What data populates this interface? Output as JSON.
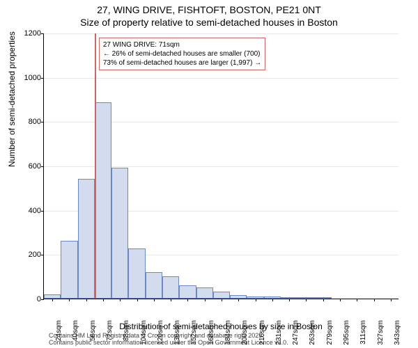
{
  "title_line1": "27, WING DRIVE, FISHTOFT, BOSTON, PE21 0NT",
  "title_line2": "Size of property relative to semi-detached houses in Boston",
  "chart": {
    "type": "histogram",
    "ylim": [
      0,
      1200
    ],
    "ytick_step": 200,
    "x_labels": [
      "24sqm",
      "40sqm",
      "56sqm",
      "72sqm",
      "88sqm",
      "104sqm",
      "120sqm",
      "136sqm",
      "152sqm",
      "168sqm",
      "184sqm",
      "200sqm",
      "216sqm",
      "231sqm",
      "247sqm",
      "263sqm",
      "279sqm",
      "295sqm",
      "311sqm",
      "327sqm",
      "343sqm"
    ],
    "values": [
      20,
      260,
      540,
      885,
      590,
      225,
      120,
      100,
      60,
      50,
      30,
      15,
      10,
      8,
      5,
      3,
      2,
      0,
      0,
      0,
      0
    ],
    "bar_fill": "#d3dcef",
    "bar_stroke": "#6a87c6",
    "bar_stroke_width": 1,
    "background_color": "#ffffff",
    "grid_color": "#e8e8e8",
    "ref_line": {
      "at_index": 3,
      "color": "#cc6666"
    },
    "annotation": {
      "line1": "27 WING DRIVE: 71sqm",
      "line2": "← 26% of semi-detached houses are smaller (700)",
      "line3": "73% of semi-detached houses are larger (1,997) →",
      "border_color": "#cc6666",
      "bg_color": "#ffffff",
      "text_color": "#000000"
    },
    "ylabel": "Number of semi-detached properties",
    "xlabel": "Distribution of semi-detached houses by size in Boston",
    "label_fontsize": 12,
    "tick_fontsize": 11
  },
  "attribution": {
    "line1": "Contains HM Land Registry data © Crown copyright and database right 2025.",
    "line2": "Contains public sector information licensed under the Open Government Licence v3.0."
  }
}
